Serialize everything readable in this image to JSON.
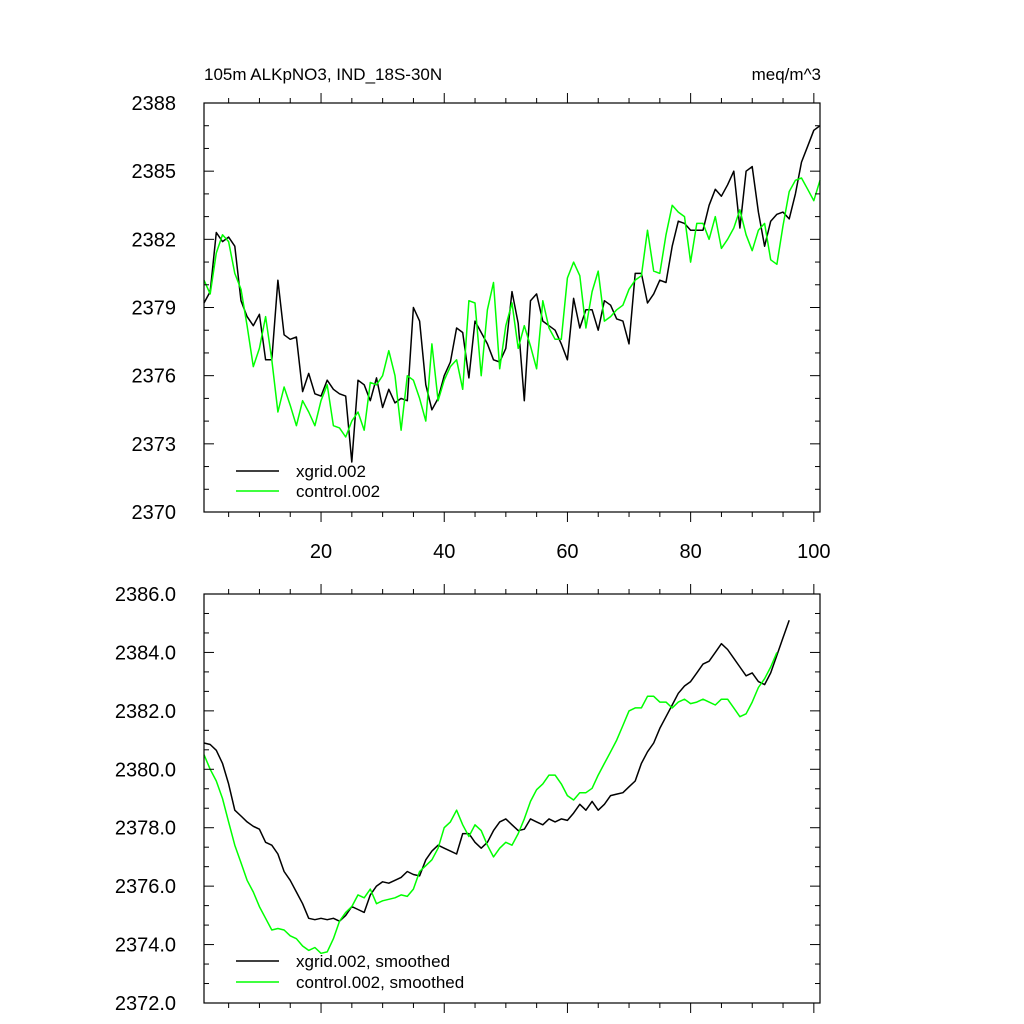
{
  "colors": {
    "series1": "#000000",
    "series2": "#00ff00",
    "axes": "#000000"
  },
  "chart_data": [
    {
      "type": "line",
      "title_left": "105m ALKpNO3, IND_18S-30N",
      "title_right": "meq/m^3",
      "xlabel": "",
      "ylabel": "",
      "xlim": [
        1,
        101
      ],
      "ylim": [
        2370,
        2388
      ],
      "x_ticks": [
        20,
        40,
        60,
        80,
        100
      ],
      "x_tick_labels": [
        "20",
        "40",
        "60",
        "80",
        "100"
      ],
      "y_ticks": [
        2370,
        2373,
        2376,
        2379,
        2382,
        2385,
        2388
      ],
      "y_tick_labels": [
        "2370",
        "2373",
        "2376",
        "2379",
        "2382",
        "2385",
        "2388"
      ],
      "legend": "bottom-left",
      "series": [
        {
          "name": "xgrid.002",
          "color": "#000000",
          "values": [
            2379.2,
            2379.7,
            2382.3,
            2381.9,
            2382.1,
            2381.7,
            2379.3,
            2378.6,
            2378.2,
            2378.7,
            2376.7,
            2376.7,
            2380.2,
            2377.8,
            2377.6,
            2377.7,
            2375.3,
            2376.1,
            2375.2,
            2375.1,
            2375.8,
            2375.4,
            2375.2,
            2375.1,
            2372.2,
            2375.8,
            2375.6,
            2374.9,
            2375.9,
            2374.6,
            2375.4,
            2374.8,
            2375.0,
            2374.9,
            2379.0,
            2378.4,
            2375.6,
            2374.5,
            2375.0,
            2376.0,
            2376.6,
            2378.1,
            2377.9,
            2375.9,
            2378.4,
            2377.9,
            2377.4,
            2376.7,
            2376.6,
            2377.2,
            2379.7,
            2378.3,
            2374.9,
            2379.3,
            2379.6,
            2378.4,
            2378.2,
            2378.0,
            2377.4,
            2376.7,
            2379.4,
            2378.1,
            2378.9,
            2378.9,
            2378.0,
            2379.3,
            2379.1,
            2378.5,
            2378.4,
            2377.4,
            2380.5,
            2380.5,
            2379.2,
            2379.6,
            2380.2,
            2380.1,
            2381.7,
            2382.8,
            2382.7,
            2382.4,
            2382.4,
            2382.4,
            2383.5,
            2384.2,
            2383.9,
            2384.4,
            2385.0,
            2382.5,
            2385.0,
            2385.2,
            2383.2,
            2381.7,
            2382.8,
            2383.1,
            2383.2,
            2382.9,
            2384.0,
            2385.4,
            2386.1,
            2386.8,
            2387.0
          ]
        },
        {
          "name": "control.002",
          "color": "#00ff00",
          "values": [
            2380.2,
            2379.6,
            2381.4,
            2382.2,
            2381.9,
            2380.5,
            2379.8,
            2378.2,
            2376.4,
            2377.2,
            2378.6,
            2376.7,
            2374.4,
            2375.5,
            2374.7,
            2373.8,
            2374.9,
            2374.4,
            2373.8,
            2374.9,
            2375.6,
            2373.8,
            2373.7,
            2373.3,
            2374.0,
            2374.4,
            2373.6,
            2375.7,
            2375.6,
            2376.0,
            2377.1,
            2376.0,
            2373.6,
            2376.0,
            2375.8,
            2375.0,
            2374.0,
            2377.4,
            2374.9,
            2375.8,
            2376.4,
            2376.7,
            2375.4,
            2379.3,
            2379.2,
            2376.0,
            2378.9,
            2380.1,
            2376.3,
            2378.2,
            2379.2,
            2377.2,
            2378.2,
            2377.3,
            2376.3,
            2379.3,
            2378.1,
            2377.6,
            2377.6,
            2380.3,
            2381.0,
            2380.4,
            2378.1,
            2379.7,
            2380.6,
            2378.4,
            2378.6,
            2378.9,
            2379.1,
            2379.8,
            2380.2,
            2380.4,
            2382.4,
            2380.6,
            2380.5,
            2382.2,
            2383.5,
            2383.2,
            2383.0,
            2381.0,
            2382.7,
            2382.7,
            2382.0,
            2383.0,
            2381.6,
            2382.0,
            2382.5,
            2383.3,
            2382.2,
            2381.5,
            2382.4,
            2382.7,
            2381.1,
            2380.9,
            2382.6,
            2384.1,
            2384.6,
            2384.7,
            2384.2,
            2383.7,
            2384.6
          ]
        }
      ]
    },
    {
      "type": "line",
      "xlabel": "",
      "ylabel": "",
      "xlim": [
        1,
        101
      ],
      "ylim": [
        2372,
        2386
      ],
      "x_ticks": [
        20,
        40,
        60,
        80,
        100
      ],
      "y_ticks": [
        2372,
        2374,
        2376,
        2378,
        2380,
        2382,
        2384,
        2386
      ],
      "y_tick_labels": [
        "2372.0",
        "2374.0",
        "2376.0",
        "2378.0",
        "2380.0",
        "2382.0",
        "2384.0",
        "2386.0"
      ],
      "legend": "bottom-left",
      "series": [
        {
          "name": "xgrid.002, smoothed",
          "color": "#000000",
          "values": [
            2380.9,
            2380.85,
            2380.65,
            2380.2,
            2379.5,
            2378.6,
            2378.4,
            2378.2,
            2378.05,
            2377.95,
            2377.5,
            2377.4,
            2377.1,
            2376.5,
            2376.2,
            2375.8,
            2375.4,
            2374.9,
            2374.85,
            2374.9,
            2374.85,
            2374.9,
            2374.8,
            2375.0,
            2375.3,
            2375.2,
            2375.1,
            2375.7,
            2376.0,
            2376.15,
            2376.1,
            2376.2,
            2376.3,
            2376.5,
            2376.4,
            2376.35,
            2376.9,
            2377.2,
            2377.4,
            2377.3,
            2377.2,
            2377.1,
            2377.8,
            2377.8,
            2377.5,
            2377.3,
            2377.5,
            2377.9,
            2378.2,
            2378.3,
            2378.1,
            2377.9,
            2377.95,
            2378.3,
            2378.2,
            2378.1,
            2378.3,
            2378.2,
            2378.3,
            2378.25,
            2378.5,
            2378.8,
            2378.6,
            2378.9,
            2378.6,
            2378.8,
            2379.1,
            2379.15,
            2379.2,
            2379.4,
            2379.6,
            2380.2,
            2380.6,
            2380.9,
            2381.4,
            2381.8,
            2382.2,
            2382.6,
            2382.85,
            2383.0,
            2383.3,
            2383.6,
            2383.7,
            2384.0,
            2384.3,
            2384.1,
            2383.8,
            2383.5,
            2383.2,
            2383.3,
            2383.0,
            2382.9,
            2383.3,
            2383.9,
            2384.5,
            2385.1
          ]
        },
        {
          "name": "control.002, smoothed",
          "color": "#00ff00",
          "values": [
            2380.5,
            2380.0,
            2379.6,
            2379.0,
            2378.2,
            2377.4,
            2376.8,
            2376.2,
            2375.8,
            2375.3,
            2374.9,
            2374.5,
            2374.55,
            2374.5,
            2374.3,
            2374.2,
            2373.95,
            2373.8,
            2373.9,
            2373.7,
            2373.75,
            2374.2,
            2374.8,
            2375.1,
            2375.3,
            2375.7,
            2375.6,
            2375.9,
            2375.4,
            2375.5,
            2375.55,
            2375.6,
            2375.7,
            2375.65,
            2375.9,
            2376.5,
            2376.7,
            2376.9,
            2377.3,
            2378.0,
            2378.2,
            2378.6,
            2378.1,
            2377.7,
            2378.1,
            2377.9,
            2377.4,
            2377.0,
            2377.3,
            2377.5,
            2377.4,
            2377.8,
            2378.3,
            2378.9,
            2379.3,
            2379.5,
            2379.8,
            2379.8,
            2379.5,
            2379.1,
            2378.95,
            2379.2,
            2379.2,
            2379.35,
            2379.8,
            2380.2,
            2380.6,
            2381.0,
            2381.5,
            2382.0,
            2382.1,
            2382.1,
            2382.5,
            2382.5,
            2382.3,
            2382.3,
            2382.1,
            2382.3,
            2382.4,
            2382.25,
            2382.3,
            2382.4,
            2382.3,
            2382.2,
            2382.4,
            2382.4,
            2382.1,
            2381.8,
            2381.9,
            2382.3,
            2382.8,
            2383.1,
            2383.5,
            2384.0
          ]
        }
      ]
    }
  ]
}
